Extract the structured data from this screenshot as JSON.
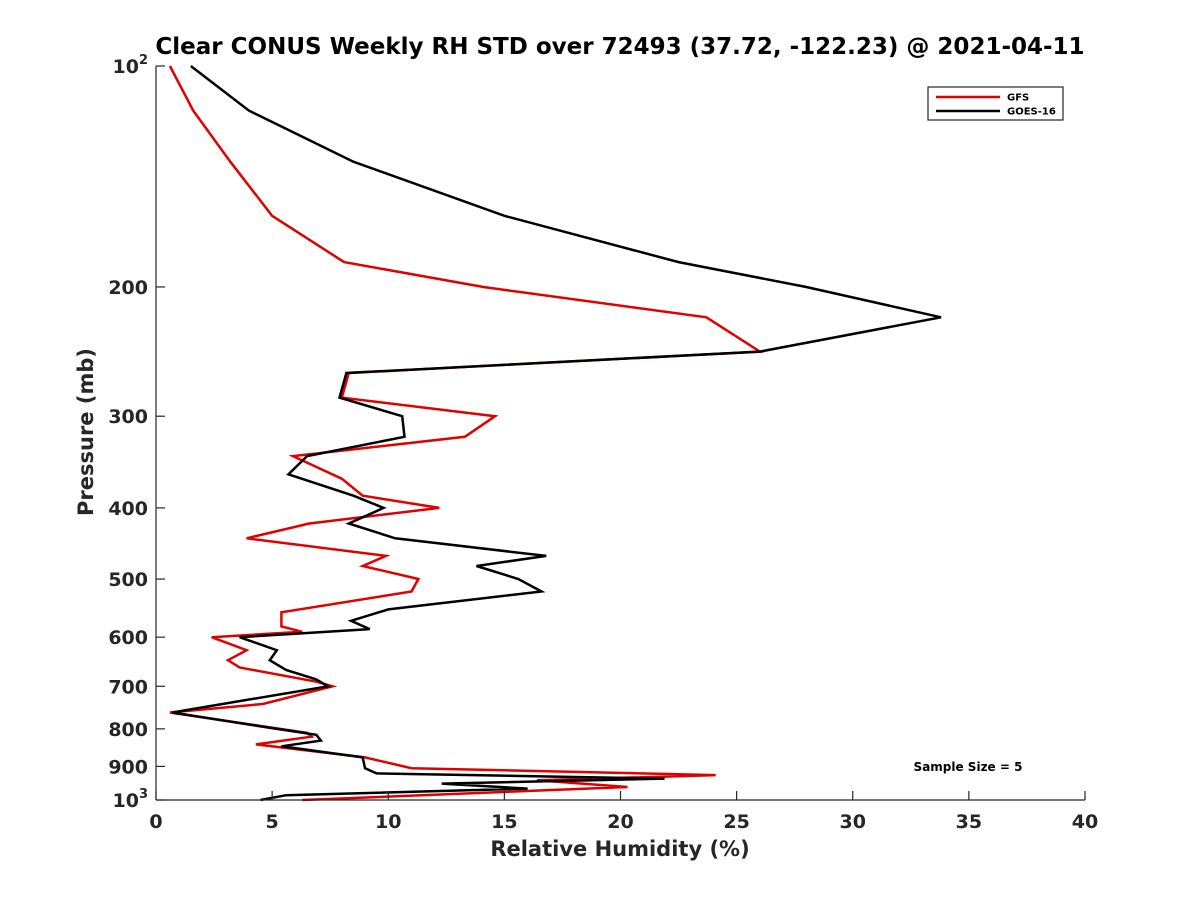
{
  "chart_data": {
    "type": "line",
    "title": "Clear CONUS Weekly RH STD over 72493 (37.72, -122.23) @ 2021-04-11",
    "xlabel": "Relative Humidity (%)",
    "ylabel": "Pressure (mb)",
    "xlim": [
      0,
      40
    ],
    "ylim": [
      100,
      1000
    ],
    "yscale": "log",
    "y_reversed": true,
    "grid": false,
    "legend_position": "top-right",
    "annotation": "Sample Size = 5",
    "x_ticks": [
      "0",
      "5",
      "10",
      "15",
      "20",
      "25",
      "30",
      "35",
      "40"
    ],
    "x_tick_values": [
      0,
      5,
      10,
      15,
      20,
      25,
      30,
      35,
      40
    ],
    "y_ticks": [
      {
        "value": 100,
        "base": "10",
        "exp": "2"
      },
      {
        "value": 200,
        "base": "200",
        "exp": ""
      },
      {
        "value": 300,
        "base": "300",
        "exp": ""
      },
      {
        "value": 400,
        "base": "400",
        "exp": ""
      },
      {
        "value": 500,
        "base": "500",
        "exp": ""
      },
      {
        "value": 600,
        "base": "600",
        "exp": ""
      },
      {
        "value": 700,
        "base": "700",
        "exp": ""
      },
      {
        "value": 800,
        "base": "800",
        "exp": ""
      },
      {
        "value": 900,
        "base": "900",
        "exp": ""
      },
      {
        "value": 1000,
        "base": "10",
        "exp": "3"
      }
    ],
    "series": [
      {
        "name": "GFS",
        "color": "#e00000",
        "points": [
          [
            0.6,
            100
          ],
          [
            1.6,
            115
          ],
          [
            3.2,
            135
          ],
          [
            5.0,
            160
          ],
          [
            8.1,
            185
          ],
          [
            14.1,
            200
          ],
          [
            23.7,
            220
          ],
          [
            26.0,
            245
          ],
          [
            8.3,
            262
          ],
          [
            8.0,
            283
          ],
          [
            14.6,
            300
          ],
          [
            13.3,
            320
          ],
          [
            5.9,
            340
          ],
          [
            8.0,
            365
          ],
          [
            8.9,
            385
          ],
          [
            12.2,
            400
          ],
          [
            6.6,
            420
          ],
          [
            3.9,
            440
          ],
          [
            9.9,
            465
          ],
          [
            8.9,
            480
          ],
          [
            11.3,
            500
          ],
          [
            11.0,
            520
          ],
          [
            5.4,
            555
          ],
          [
            5.4,
            580
          ],
          [
            6.3,
            590
          ],
          [
            2.4,
            600
          ],
          [
            3.9,
            625
          ],
          [
            3.1,
            645
          ],
          [
            3.6,
            660
          ],
          [
            6.9,
            690
          ],
          [
            7.6,
            700
          ],
          [
            4.6,
            740
          ],
          [
            0.6,
            760
          ],
          [
            6.5,
            810
          ],
          [
            6.7,
            820
          ],
          [
            4.3,
            840
          ],
          [
            9.0,
            875
          ],
          [
            11.0,
            905
          ],
          [
            24.1,
            925
          ],
          [
            16.4,
            940
          ],
          [
            20.3,
            960
          ],
          [
            6.3,
            1000
          ]
        ]
      },
      {
        "name": "GOES-16",
        "color": "#000000",
        "points": [
          [
            1.5,
            100
          ],
          [
            4.0,
            115
          ],
          [
            8.5,
            135
          ],
          [
            15.0,
            160
          ],
          [
            22.5,
            185
          ],
          [
            28.0,
            200
          ],
          [
            33.8,
            220
          ],
          [
            26.0,
            245
          ],
          [
            8.2,
            262
          ],
          [
            7.9,
            283
          ],
          [
            10.6,
            300
          ],
          [
            10.7,
            320
          ],
          [
            6.5,
            340
          ],
          [
            5.7,
            360
          ],
          [
            8.5,
            385
          ],
          [
            9.8,
            400
          ],
          [
            8.3,
            420
          ],
          [
            10.3,
            440
          ],
          [
            16.8,
            465
          ],
          [
            13.8,
            480
          ],
          [
            15.6,
            500
          ],
          [
            16.6,
            520
          ],
          [
            10.0,
            550
          ],
          [
            8.4,
            570
          ],
          [
            9.2,
            585
          ],
          [
            3.6,
            600
          ],
          [
            5.2,
            625
          ],
          [
            4.9,
            645
          ],
          [
            5.6,
            665
          ],
          [
            6.9,
            685
          ],
          [
            7.4,
            700
          ],
          [
            3.4,
            735
          ],
          [
            0.7,
            760
          ],
          [
            5.2,
            800
          ],
          [
            6.9,
            815
          ],
          [
            7.1,
            830
          ],
          [
            5.4,
            845
          ],
          [
            8.9,
            875
          ],
          [
            9.0,
            905
          ],
          [
            9.5,
            920
          ],
          [
            21.9,
            935
          ],
          [
            12.3,
            950
          ],
          [
            16.0,
            965
          ],
          [
            5.6,
            985
          ],
          [
            4.5,
            1000
          ]
        ]
      }
    ]
  }
}
